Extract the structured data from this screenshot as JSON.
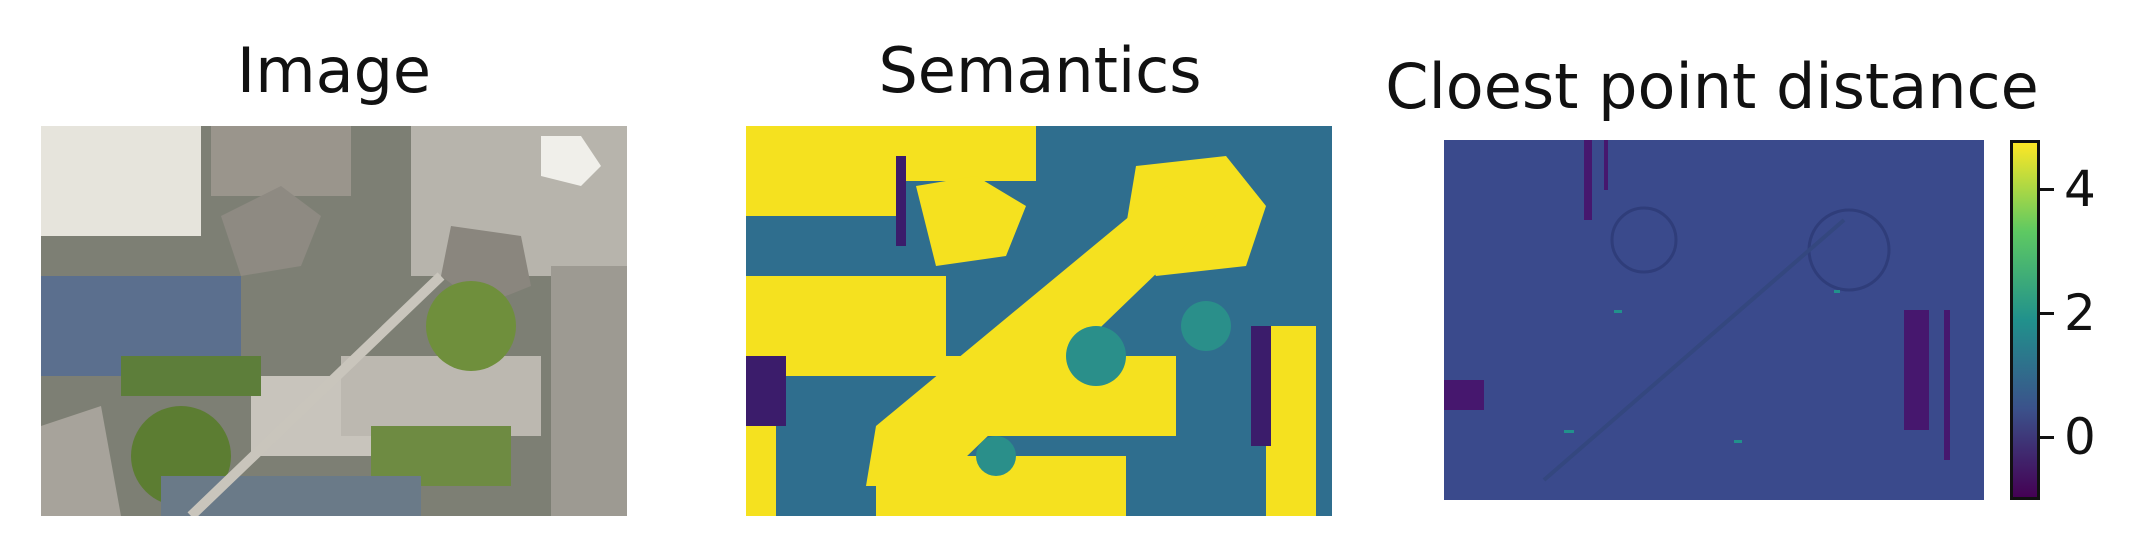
{
  "panels": [
    {
      "title": "Image",
      "type": "rgb-image"
    },
    {
      "title": "Semantics",
      "type": "label-map"
    },
    {
      "title": "Cloest point distance",
      "type": "scalar-map"
    }
  ],
  "colorbar": {
    "colormap": "viridis",
    "min": -1,
    "max": 4.8,
    "ticks": [
      {
        "value": 4,
        "label": "4"
      },
      {
        "value": 2,
        "label": "2"
      },
      {
        "value": 0,
        "label": "0"
      }
    ]
  },
  "colors": {
    "viridis_low": "#440154",
    "viridis_mid": "#21918c",
    "viridis_high": "#fde725",
    "semantic_yellow": "#f5e11f",
    "semantic_teal": "#2f6e8e",
    "semantic_dark": "#3b1c6b",
    "distance_bg": "#3a4a8c"
  }
}
